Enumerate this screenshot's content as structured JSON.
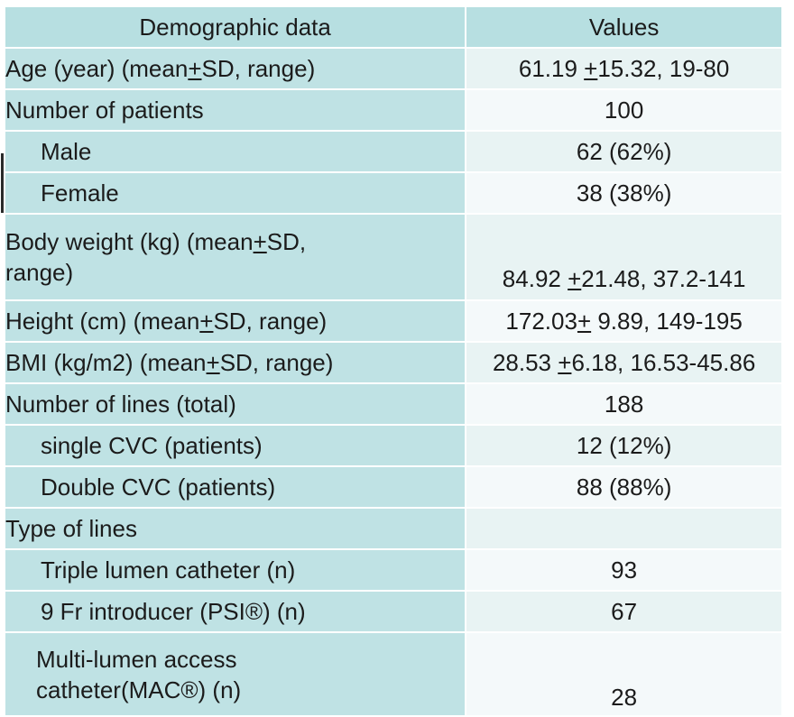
{
  "table": {
    "headers": [
      "Demographic data",
      "Values"
    ],
    "rows": [
      {
        "label": "Age (year) (mean±SD, range)",
        "value": "61.19 ±15.32, 19-80"
      },
      {
        "label": "Number of patients",
        "value": "100"
      },
      {
        "label": "Male",
        "value": "62 (62%)"
      },
      {
        "label": "Female",
        "value": "38 (38%)"
      },
      {
        "label_line1": "Body weight (kg) (mean±SD,",
        "label_line2": "range)",
        "value": "84.92 ±21.48, 37.2-141"
      },
      {
        "label": "Height (cm) (mean±SD, range)",
        "value": "172.03± 9.89, 149-195"
      },
      {
        "label": "BMI (kg/m2) (mean±SD, range)",
        "value": "28.53 ±6.18, 16.53-45.86"
      },
      {
        "label": "Number of lines (total)",
        "value": "188"
      },
      {
        "label": "single CVC (patients)",
        "value": "12 (12%)"
      },
      {
        "label": "Double CVC (patients)",
        "value": "88 (88%)"
      },
      {
        "label": "Type of lines",
        "value": ""
      },
      {
        "label": "Triple lumen catheter (n)",
        "value": "93"
      },
      {
        "label": "9 Fr introducer (PSI®) (n)",
        "value": "67"
      },
      {
        "label_line1": "Multi-lumen access",
        "label_line2": "catheter(MAC®) (n)",
        "value": "28"
      }
    ]
  },
  "colors": {
    "header_bg": "#b7dfe1",
    "label_bg": "#bfe2e4",
    "value_bg_odd": "#e8f3f3",
    "value_bg_even": "#f4f9fa"
  }
}
